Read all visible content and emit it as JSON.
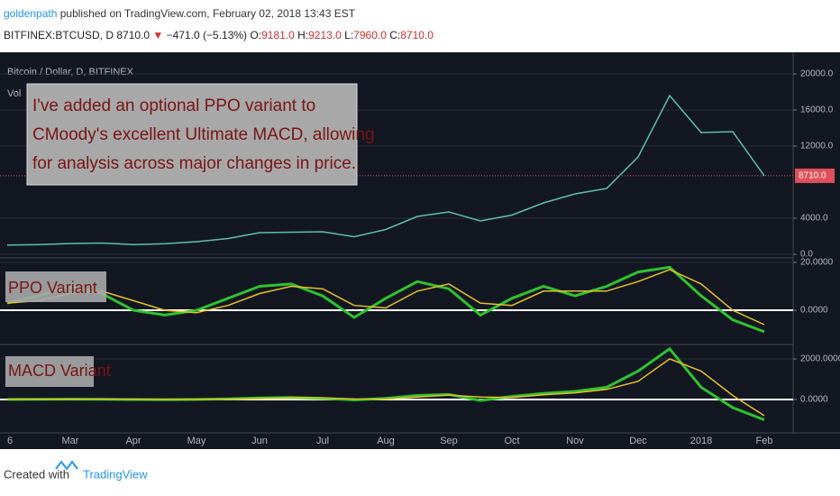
{
  "header": {
    "author": "goldenpath",
    "published": "published on TradingView.com, February 02, 2018 13:43 EST",
    "symbol": "BITFINEX:BTCUSD, D",
    "last": "8710.0",
    "arrow": "▼",
    "change": "−471.0 (−5.13%)",
    "ohlc": [
      {
        "key": "O:",
        "val": "9181.0"
      },
      {
        "key": "H:",
        "val": "9213.0"
      },
      {
        "key": "L:",
        "val": "7960.0"
      },
      {
        "key": "C:",
        "val": "8710.0"
      }
    ]
  },
  "annotation": [
    "I've added an optional PPO variant to",
    "CMoody's excellent Ultimate MACD, allowing",
    "for analysis across major changes in price."
  ],
  "footer": {
    "created": "Created with",
    "brand": "TradingView"
  },
  "chart_data": [
    {
      "type": "line",
      "title": "Bitcoin / Dollar, D, BITFINEX",
      "subtitle": "Vol",
      "categories": [
        "6",
        null,
        "Mar",
        null,
        "Apr",
        null,
        "May",
        null,
        "Jun",
        null,
        "Jul",
        null,
        "Aug",
        null,
        "Sep",
        null,
        "Oct",
        null,
        "Nov",
        null,
        "Dec",
        null,
        "2018",
        null,
        "Feb"
      ],
      "series": [
        {
          "color": "#5fbfa8",
          "values": [
            1030,
            1080,
            1200,
            1250,
            1080,
            1180,
            1400,
            1750,
            2400,
            2450,
            2500,
            1950,
            2750,
            4200,
            4700,
            3700,
            4350,
            5700,
            6700,
            7300,
            10800,
            17600,
            13500,
            13600,
            8710
          ]
        }
      ],
      "last_label": "8710.0",
      "ylim": [
        -400,
        22200
      ],
      "yticks": [
        {
          "value": 0,
          "label": "0.0"
        },
        {
          "value": 4000,
          "label": "4000.0"
        },
        {
          "value": 12000,
          "label": "12000.0"
        },
        {
          "value": 16000,
          "label": "16000.0"
        },
        {
          "value": 20000,
          "label": "20000.0"
        }
      ],
      "grid": true
    },
    {
      "type": "line",
      "title": "PPO Variant",
      "series": [
        {
          "color": "#2fc22f",
          "values": [
            3,
            6,
            10,
            7,
            0,
            -2,
            0,
            5,
            10,
            11,
            6,
            -3,
            5,
            12,
            9,
            -2,
            5,
            10,
            6,
            10,
            16,
            18,
            6,
            -4,
            -9
          ]
        },
        {
          "color": "#e6c02a",
          "values": [
            3,
            4,
            7,
            8,
            4,
            0,
            -1,
            2,
            7,
            10,
            9,
            2,
            1,
            8,
            11,
            3,
            2,
            8,
            8,
            8,
            12,
            17,
            11,
            0,
            -6
          ]
        }
      ],
      "ylim": [
        -14.3,
        21.5
      ],
      "yticks": [
        {
          "value": 20,
          "label": "20.0000"
        },
        {
          "value": 0,
          "label": "0.0000"
        }
      ],
      "grid": true
    },
    {
      "type": "line",
      "title": "MACD Variant",
      "series": [
        {
          "color": "#2fc22f",
          "values": [
            5,
            10,
            20,
            15,
            0,
            -5,
            5,
            30,
            80,
            100,
            60,
            -20,
            60,
            200,
            250,
            -50,
            150,
            300,
            400,
            600,
            1400,
            2500,
            600,
            -400,
            -1000
          ]
        },
        {
          "color": "#e6c02a",
          "values": [
            5,
            8,
            15,
            17,
            8,
            0,
            0,
            15,
            50,
            85,
            80,
            25,
            20,
            120,
            220,
            120,
            100,
            230,
            330,
            500,
            900,
            2000,
            1400,
            200,
            -800
          ]
        }
      ],
      "ylim": [
        -1511,
        2667
      ],
      "yticks": [
        {
          "value": 2000,
          "label": "2000.0000"
        },
        {
          "value": 0,
          "label": "0.0000"
        }
      ],
      "grid": true
    }
  ]
}
